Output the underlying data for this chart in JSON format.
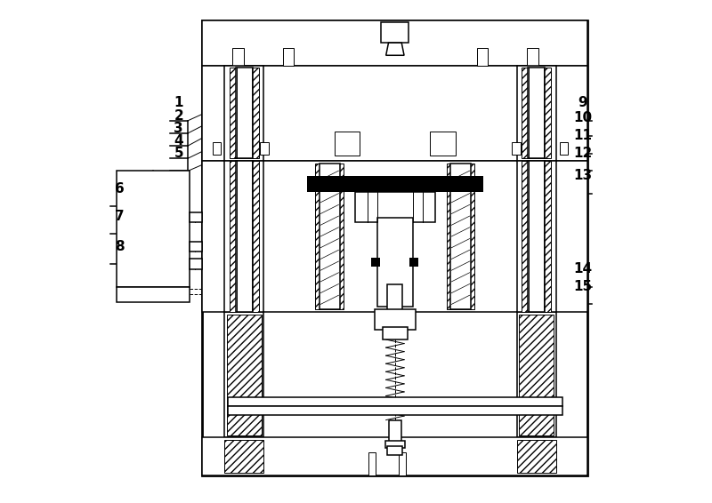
{
  "bg_color": "#ffffff",
  "line_color": "#000000",
  "lw_thin": 0.7,
  "lw_med": 1.1,
  "lw_thick": 2.0,
  "label_fontsize": 11,
  "label_fontweight": "bold",
  "labels_left": {
    "1": [
      0.148,
      0.76,
      0.232,
      0.79
    ],
    "2": [
      0.148,
      0.735,
      0.234,
      0.77
    ],
    "3": [
      0.148,
      0.71,
      0.236,
      0.748
    ],
    "4": [
      0.148,
      0.685,
      0.238,
      0.72
    ],
    "5": [
      0.148,
      0.66,
      0.24,
      0.692
    ],
    "6": [
      0.03,
      0.59,
      0.08,
      0.565
    ],
    "7": [
      0.03,
      0.535,
      0.08,
      0.52
    ],
    "8": [
      0.03,
      0.475,
      0.08,
      0.48
    ]
  },
  "labels_right": {
    "9": [
      0.95,
      0.76,
      0.82,
      0.79
    ],
    "10": [
      0.95,
      0.73,
      0.82,
      0.76
    ],
    "11": [
      0.95,
      0.695,
      0.82,
      0.72
    ],
    "12": [
      0.95,
      0.66,
      0.82,
      0.69
    ],
    "13": [
      0.95,
      0.615,
      0.82,
      0.625
    ],
    "14": [
      0.95,
      0.43,
      0.82,
      0.445
    ],
    "15": [
      0.95,
      0.395,
      0.82,
      0.41
    ]
  }
}
